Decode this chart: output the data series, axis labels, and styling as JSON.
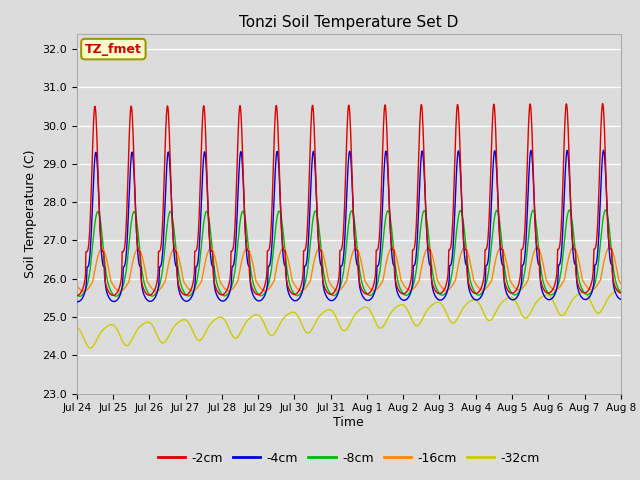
{
  "title": "Tonzi Soil Temperature Set D",
  "xlabel": "Time",
  "ylabel": "Soil Temperature (C)",
  "ylim": [
    23.0,
    32.4
  ],
  "yticks": [
    23.0,
    24.0,
    25.0,
    26.0,
    27.0,
    28.0,
    29.0,
    30.0,
    31.0,
    32.0
  ],
  "xtick_labels": [
    "Jul 24",
    "Jul 25",
    "Jul 26",
    "Jul 27",
    "Jul 28",
    "Jul 29",
    "Jul 30",
    "Jul 31",
    "Aug 1",
    "Aug 2",
    "Aug 3",
    "Aug 4",
    "Aug 5",
    "Aug 6",
    "Aug 7",
    "Aug 8"
  ],
  "legend_labels": [
    "-2cm",
    "-4cm",
    "-8cm",
    "-16cm",
    "-32cm"
  ],
  "line_colors": [
    "#dd0000",
    "#0000dd",
    "#00bb00",
    "#ff8800",
    "#cccc00"
  ],
  "annotation_text": "TZ_fmet",
  "annotation_bg": "#ffffcc",
  "annotation_border": "#999900",
  "plot_bg": "#dcdcdc",
  "fig_bg": "#dcdcdc",
  "n_days": 15,
  "points_per_day": 96
}
